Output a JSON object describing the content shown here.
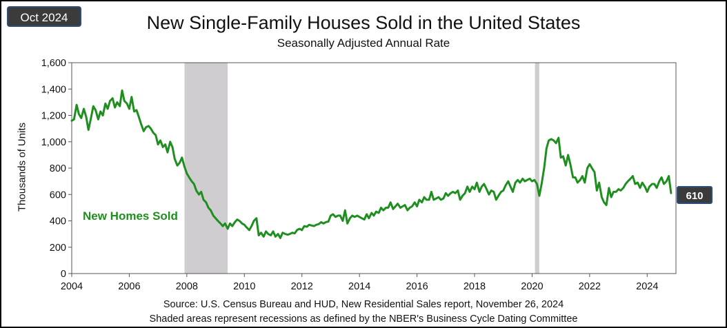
{
  "header": {
    "date_badge": "Oct 2024",
    "title": "New Single-Family Houses Sold in the United States",
    "subtitle": "Seasonally Adjusted Annual Rate"
  },
  "footer": {
    "source": "Source:  U.S. Census Bureau and HUD, New Residential Sales report, November 26, 2024",
    "note": "Shaded areas represent recessions as defined by the NBER's Business Cycle Dating Committee"
  },
  "colors": {
    "line": "#1e8f1e",
    "recession": "#cfcdcf",
    "badge_bg": "#3b3b3b",
    "badge_border": "#2b4f7c"
  },
  "chart_data": {
    "type": "line",
    "title": "New Single-Family Houses Sold in the United States",
    "subtitle": "Seasonally Adjusted Annual Rate",
    "xlabel": "",
    "ylabel": "Thousands of Units",
    "xlim": [
      2004,
      2025
    ],
    "ylim": [
      0,
      1600
    ],
    "grid": false,
    "x_ticks": [
      "2004",
      "2006",
      "2008",
      "2010",
      "2012",
      "2014",
      "2016",
      "2018",
      "2020",
      "2022",
      "2024"
    ],
    "y_ticks": [
      "0",
      "200",
      "400",
      "600",
      "800",
      "1,000",
      "1,200",
      "1,400",
      "1,600"
    ],
    "recessions": [
      {
        "start": 2007.92,
        "end": 2009.42
      },
      {
        "start": 2020.1,
        "end": 2020.25
      }
    ],
    "series_label": "New Homes Sold",
    "last_value_label": "610",
    "series": [
      {
        "name": "New Homes Sold",
        "points": [
          [
            2004.0,
            1160
          ],
          [
            2004.08,
            1170
          ],
          [
            2004.17,
            1280
          ],
          [
            2004.25,
            1210
          ],
          [
            2004.33,
            1180
          ],
          [
            2004.42,
            1250
          ],
          [
            2004.5,
            1190
          ],
          [
            2004.58,
            1090
          ],
          [
            2004.67,
            1180
          ],
          [
            2004.75,
            1270
          ],
          [
            2004.83,
            1240
          ],
          [
            2004.92,
            1170
          ],
          [
            2005.0,
            1230
          ],
          [
            2005.08,
            1200
          ],
          [
            2005.17,
            1290
          ],
          [
            2005.25,
            1250
          ],
          [
            2005.33,
            1310
          ],
          [
            2005.42,
            1330
          ],
          [
            2005.5,
            1260
          ],
          [
            2005.58,
            1300
          ],
          [
            2005.67,
            1270
          ],
          [
            2005.75,
            1390
          ],
          [
            2005.83,
            1310
          ],
          [
            2005.92,
            1290
          ],
          [
            2006.0,
            1250
          ],
          [
            2006.08,
            1340
          ],
          [
            2006.17,
            1230
          ],
          [
            2006.25,
            1240
          ],
          [
            2006.33,
            1190
          ],
          [
            2006.42,
            1130
          ],
          [
            2006.5,
            1080
          ],
          [
            2006.58,
            1110
          ],
          [
            2006.67,
            1120
          ],
          [
            2006.75,
            1100
          ],
          [
            2006.83,
            1070
          ],
          [
            2006.92,
            1050
          ],
          [
            2007.0,
            980
          ],
          [
            2007.08,
            1010
          ],
          [
            2007.17,
            960
          ],
          [
            2007.25,
            980
          ],
          [
            2007.33,
            920
          ],
          [
            2007.42,
            1000
          ],
          [
            2007.5,
            960
          ],
          [
            2007.58,
            870
          ],
          [
            2007.67,
            820
          ],
          [
            2007.75,
            840
          ],
          [
            2007.83,
            880
          ],
          [
            2007.92,
            810
          ],
          [
            2008.0,
            760
          ],
          [
            2008.08,
            730
          ],
          [
            2008.17,
            700
          ],
          [
            2008.25,
            680
          ],
          [
            2008.33,
            630
          ],
          [
            2008.42,
            600
          ],
          [
            2008.5,
            620
          ],
          [
            2008.58,
            560
          ],
          [
            2008.67,
            540
          ],
          [
            2008.75,
            500
          ],
          [
            2008.83,
            480
          ],
          [
            2008.92,
            440
          ],
          [
            2009.0,
            420
          ],
          [
            2009.08,
            400
          ],
          [
            2009.17,
            380
          ],
          [
            2009.25,
            360
          ],
          [
            2009.33,
            380
          ],
          [
            2009.42,
            340
          ],
          [
            2009.5,
            380
          ],
          [
            2009.58,
            360
          ],
          [
            2009.67,
            390
          ],
          [
            2009.75,
            410
          ],
          [
            2009.83,
            400
          ],
          [
            2009.92,
            380
          ],
          [
            2010.0,
            370
          ],
          [
            2010.08,
            350
          ],
          [
            2010.17,
            330
          ],
          [
            2010.25,
            360
          ],
          [
            2010.33,
            400
          ],
          [
            2010.42,
            420
          ],
          [
            2010.5,
            290
          ],
          [
            2010.58,
            310
          ],
          [
            2010.67,
            280
          ],
          [
            2010.75,
            320
          ],
          [
            2010.83,
            300
          ],
          [
            2010.92,
            290
          ],
          [
            2011.0,
            320
          ],
          [
            2011.08,
            280
          ],
          [
            2011.17,
            300
          ],
          [
            2011.25,
            270
          ],
          [
            2011.33,
            310
          ],
          [
            2011.42,
            300
          ],
          [
            2011.5,
            295
          ],
          [
            2011.58,
            300
          ],
          [
            2011.67,
            310
          ],
          [
            2011.75,
            305
          ],
          [
            2011.83,
            330
          ],
          [
            2011.92,
            340
          ],
          [
            2012.0,
            330
          ],
          [
            2012.08,
            360
          ],
          [
            2012.17,
            355
          ],
          [
            2012.25,
            370
          ],
          [
            2012.33,
            365
          ],
          [
            2012.42,
            360
          ],
          [
            2012.5,
            370
          ],
          [
            2012.58,
            375
          ],
          [
            2012.67,
            390
          ],
          [
            2012.75,
            380
          ],
          [
            2012.83,
            390
          ],
          [
            2012.92,
            395
          ],
          [
            2013.0,
            440
          ],
          [
            2013.08,
            450
          ],
          [
            2013.17,
            430
          ],
          [
            2013.25,
            440
          ],
          [
            2013.33,
            440
          ],
          [
            2013.42,
            400
          ],
          [
            2013.5,
            480
          ],
          [
            2013.58,
            380
          ],
          [
            2013.67,
            420
          ],
          [
            2013.75,
            440
          ],
          [
            2013.83,
            430
          ],
          [
            2013.92,
            440
          ],
          [
            2014.0,
            430
          ],
          [
            2014.08,
            420
          ],
          [
            2014.17,
            410
          ],
          [
            2014.25,
            450
          ],
          [
            2014.33,
            420
          ],
          [
            2014.42,
            460
          ],
          [
            2014.5,
            440
          ],
          [
            2014.58,
            470
          ],
          [
            2014.67,
            460
          ],
          [
            2014.75,
            500
          ],
          [
            2014.83,
            480
          ],
          [
            2014.92,
            500
          ],
          [
            2015.0,
            500
          ],
          [
            2015.08,
            540
          ],
          [
            2015.17,
            490
          ],
          [
            2015.25,
            510
          ],
          [
            2015.33,
            530
          ],
          [
            2015.42,
            500
          ],
          [
            2015.5,
            510
          ],
          [
            2015.58,
            520
          ],
          [
            2015.67,
            480
          ],
          [
            2015.75,
            500
          ],
          [
            2015.83,
            510
          ],
          [
            2015.92,
            540
          ],
          [
            2016.0,
            510
          ],
          [
            2016.08,
            560
          ],
          [
            2016.17,
            540
          ],
          [
            2016.25,
            580
          ],
          [
            2016.33,
            560
          ],
          [
            2016.42,
            560
          ],
          [
            2016.5,
            620
          ],
          [
            2016.58,
            560
          ],
          [
            2016.67,
            570
          ],
          [
            2016.75,
            580
          ],
          [
            2016.83,
            560
          ],
          [
            2016.92,
            570
          ],
          [
            2017.0,
            610
          ],
          [
            2017.08,
            590
          ],
          [
            2017.17,
            610
          ],
          [
            2017.25,
            620
          ],
          [
            2017.33,
            610
          ],
          [
            2017.42,
            630
          ],
          [
            2017.5,
            560
          ],
          [
            2017.58,
            590
          ],
          [
            2017.67,
            610
          ],
          [
            2017.75,
            660
          ],
          [
            2017.83,
            620
          ],
          [
            2017.92,
            660
          ],
          [
            2018.0,
            640
          ],
          [
            2018.08,
            690
          ],
          [
            2018.17,
            620
          ],
          [
            2018.25,
            660
          ],
          [
            2018.33,
            680
          ],
          [
            2018.42,
            640
          ],
          [
            2018.5,
            600
          ],
          [
            2018.58,
            630
          ],
          [
            2018.67,
            620
          ],
          [
            2018.75,
            560
          ],
          [
            2018.83,
            590
          ],
          [
            2018.92,
            620
          ],
          [
            2019.0,
            630
          ],
          [
            2019.08,
            670
          ],
          [
            2019.17,
            700
          ],
          [
            2019.25,
            660
          ],
          [
            2019.33,
            620
          ],
          [
            2019.42,
            690
          ],
          [
            2019.5,
            710
          ],
          [
            2019.58,
            690
          ],
          [
            2019.67,
            720
          ],
          [
            2019.75,
            700
          ],
          [
            2019.83,
            710
          ],
          [
            2019.92,
            720
          ],
          [
            2020.0,
            700
          ],
          [
            2020.08,
            710
          ],
          [
            2020.17,
            680
          ],
          [
            2020.25,
            590
          ],
          [
            2020.33,
            680
          ],
          [
            2020.42,
            800
          ],
          [
            2020.5,
            950
          ],
          [
            2020.58,
            1010
          ],
          [
            2020.67,
            1020
          ],
          [
            2020.75,
            1010
          ],
          [
            2020.83,
            990
          ],
          [
            2020.92,
            1030
          ],
          [
            2021.0,
            880
          ],
          [
            2021.08,
            890
          ],
          [
            2021.17,
            820
          ],
          [
            2021.25,
            900
          ],
          [
            2021.33,
            830
          ],
          [
            2021.42,
            730
          ],
          [
            2021.5,
            730
          ],
          [
            2021.58,
            690
          ],
          [
            2021.67,
            710
          ],
          [
            2021.75,
            740
          ],
          [
            2021.83,
            690
          ],
          [
            2021.92,
            800
          ],
          [
            2022.0,
            830
          ],
          [
            2022.08,
            800
          ],
          [
            2022.17,
            770
          ],
          [
            2022.25,
            630
          ],
          [
            2022.33,
            690
          ],
          [
            2022.42,
            580
          ],
          [
            2022.5,
            540
          ],
          [
            2022.58,
            520
          ],
          [
            2022.67,
            650
          ],
          [
            2022.75,
            580
          ],
          [
            2022.83,
            620
          ],
          [
            2022.92,
            620
          ],
          [
            2023.0,
            640
          ],
          [
            2023.08,
            630
          ],
          [
            2023.17,
            650
          ],
          [
            2023.25,
            680
          ],
          [
            2023.33,
            700
          ],
          [
            2023.42,
            720
          ],
          [
            2023.5,
            740
          ],
          [
            2023.58,
            680
          ],
          [
            2023.67,
            690
          ],
          [
            2023.75,
            650
          ],
          [
            2023.83,
            690
          ],
          [
            2023.92,
            660
          ],
          [
            2024.0,
            620
          ],
          [
            2024.08,
            660
          ],
          [
            2024.17,
            680
          ],
          [
            2024.25,
            680
          ],
          [
            2024.33,
            650
          ],
          [
            2024.42,
            700
          ],
          [
            2024.5,
            730
          ],
          [
            2024.58,
            680
          ],
          [
            2024.67,
            700
          ],
          [
            2024.75,
            740
          ],
          [
            2024.83,
            610
          ]
        ]
      }
    ]
  }
}
